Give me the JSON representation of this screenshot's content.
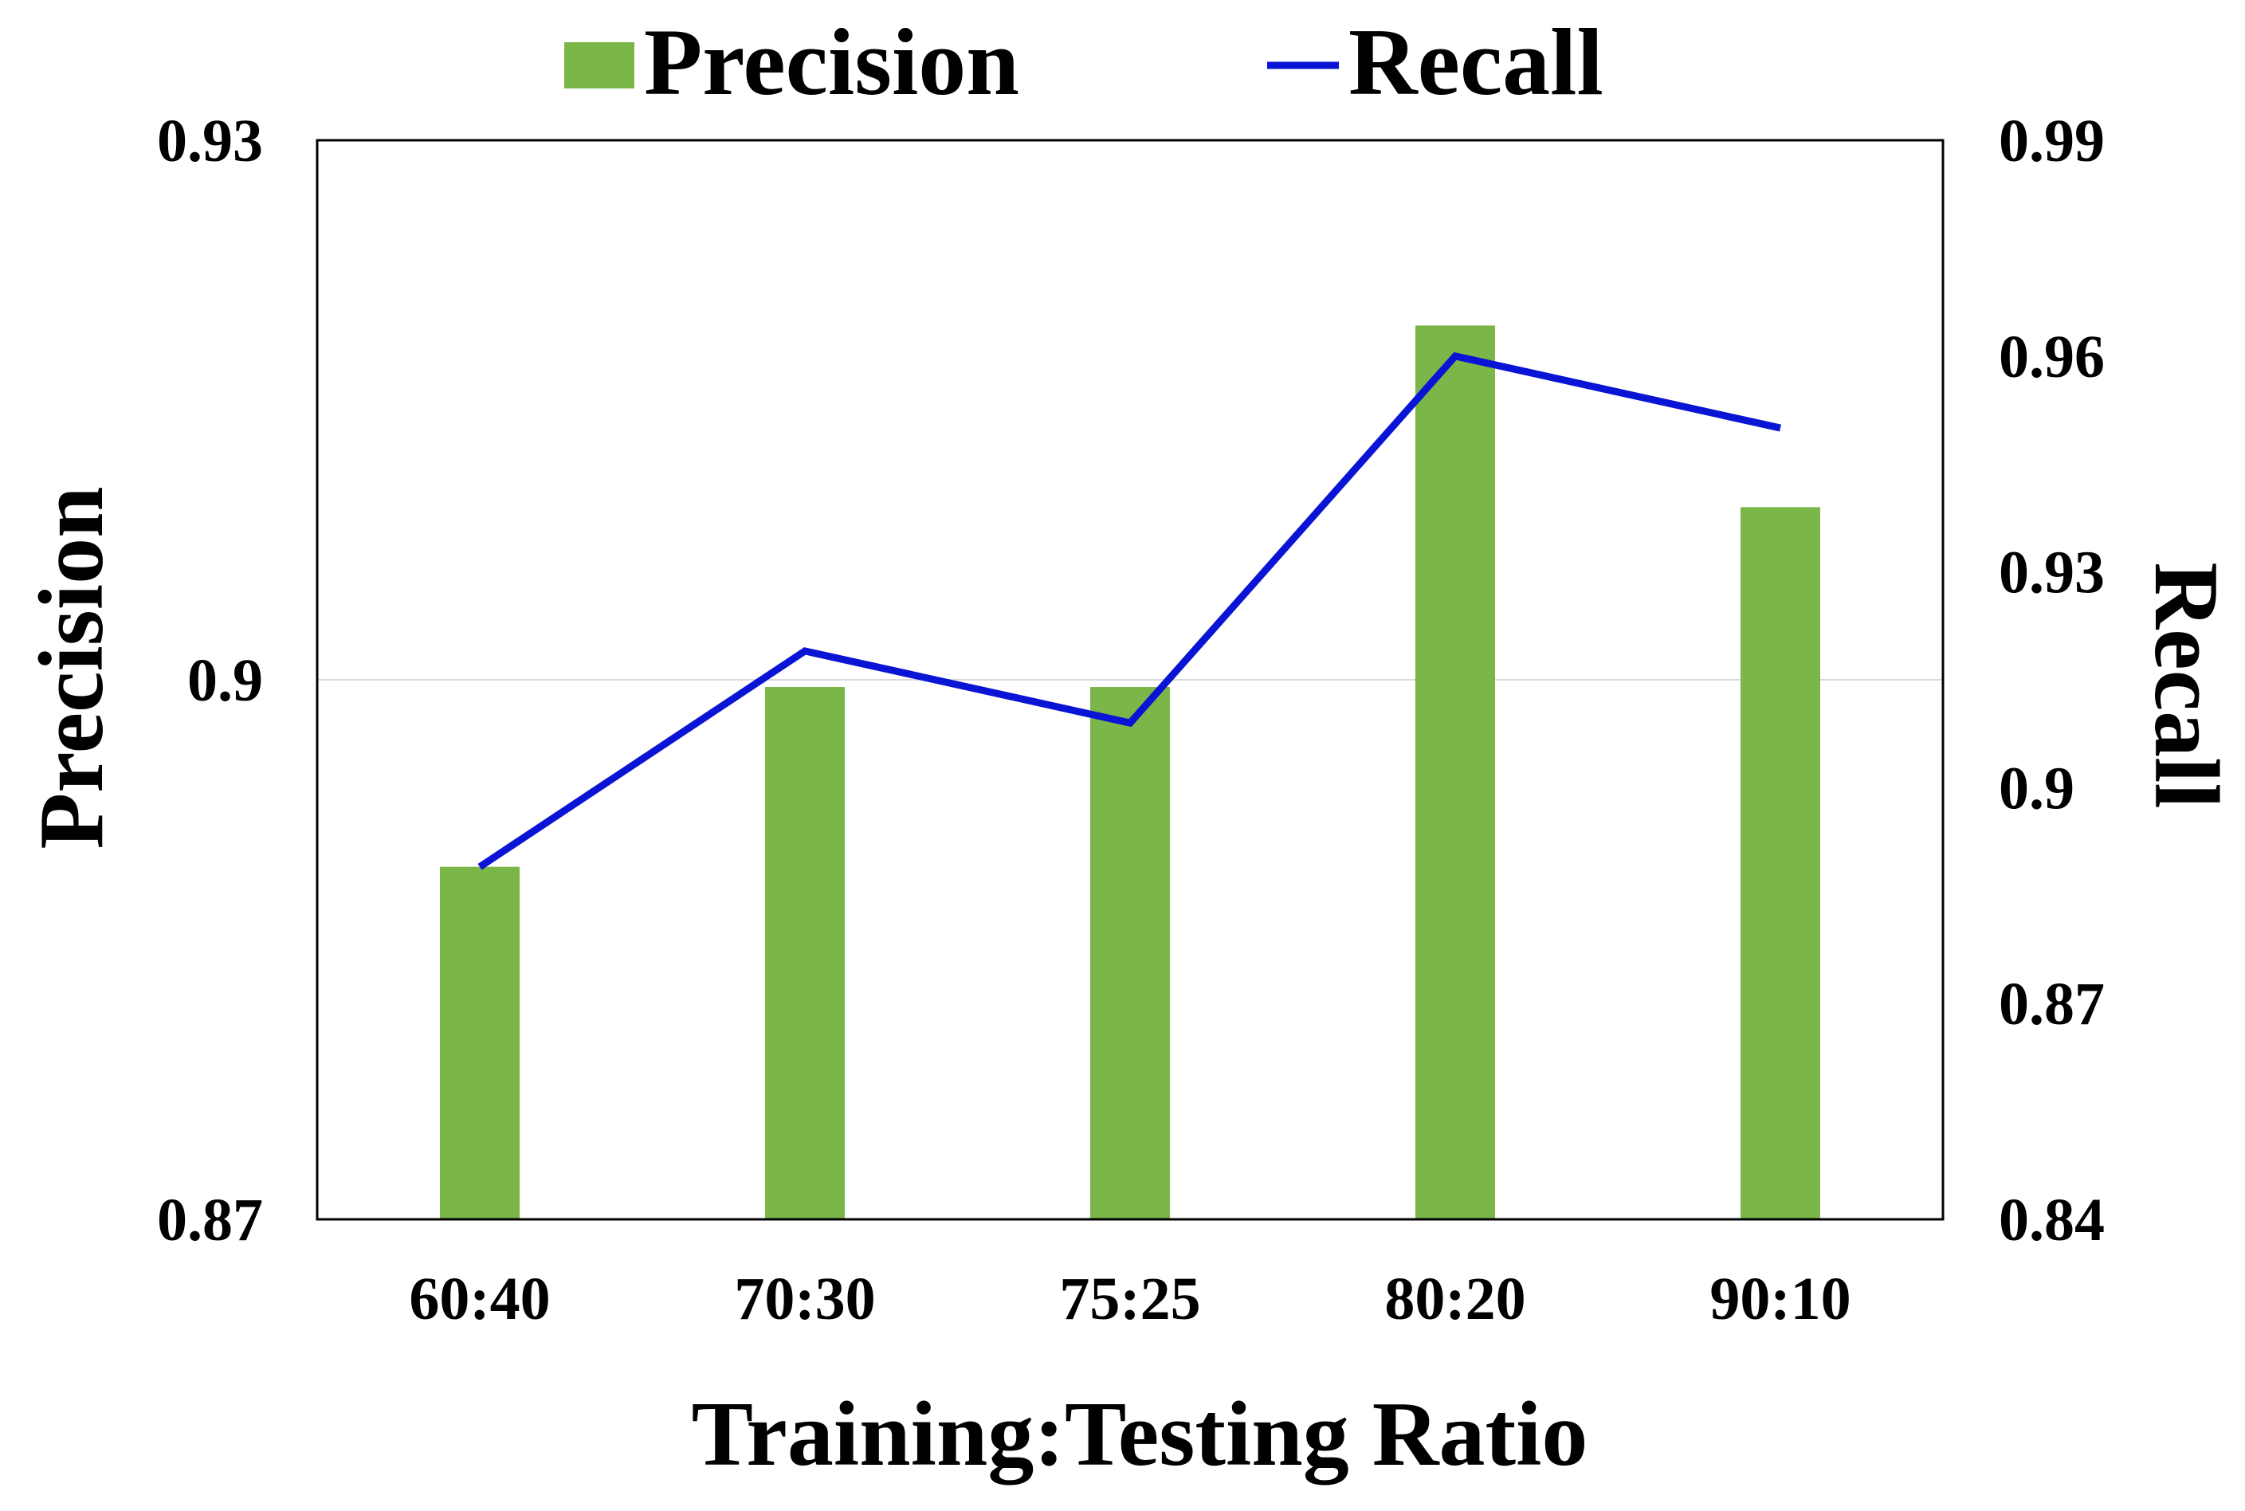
{
  "chart_data": {
    "type": "bar",
    "categories": [
      "60:40",
      "70:30",
      "75:25",
      "80:20",
      "90:10"
    ],
    "series": [
      {
        "name": "Precision",
        "type": "bar",
        "axis": "left",
        "values": [
          0.8896,
          0.8996,
          0.8996,
          0.9197,
          0.9096
        ]
      },
      {
        "name": "Recall",
        "type": "line",
        "axis": "right",
        "values": [
          0.889,
          0.919,
          0.909,
          0.96,
          0.95
        ]
      }
    ],
    "xlabel": "Training:Testing Ratio",
    "ylabel": "Precision",
    "ylabel_right": "Recall",
    "ylim": [
      0.87,
      0.93
    ],
    "ylim_right": [
      0.84,
      0.99
    ],
    "yticks": [
      "0.87",
      "0.9",
      "0.93"
    ],
    "yticks_right": [
      "0.84",
      "0.87",
      "0.9",
      "0.93",
      "0.96",
      "0.99"
    ],
    "grid": "horizontal at 0.9 only",
    "legend_position": "top-center",
    "colors": {
      "bar": "#7ab648",
      "line": "#0a14d4",
      "grid": "#d9d9d9",
      "frame": "#000000"
    }
  }
}
